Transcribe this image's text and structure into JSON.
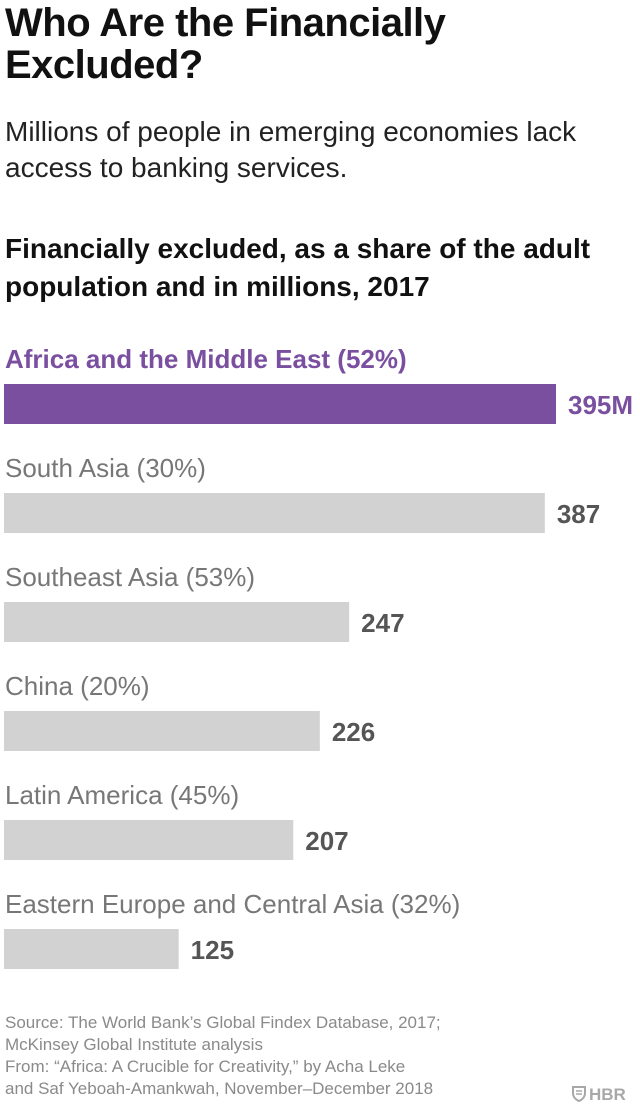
{
  "header": {
    "title": "Who Are the Financially Excluded?",
    "subtitle": "Millions of people in emerging economies lack access to banking services."
  },
  "chart_data": {
    "type": "bar",
    "orientation": "horizontal",
    "title": "Financially excluded, as a share of the adult population and in millions, 2017",
    "categories": [
      "Africa and the Middle East (52%)",
      "South Asia (30%)",
      "Southeast Asia (53%)",
      "China (20%)",
      "Latin America (45%)",
      "Eastern Europe and Central Asia (32%)"
    ],
    "values": [
      395,
      387,
      247,
      226,
      207,
      125
    ],
    "value_labels": [
      "395M",
      "387",
      "247",
      "226",
      "207",
      "125"
    ],
    "highlight_index": 0,
    "colors": {
      "highlight": "#7a4fa0",
      "bar": "#d2d2d2",
      "value_text": "#555555",
      "category_text": "#777777"
    },
    "xlim": [
      0,
      395
    ],
    "grid": false
  },
  "footer": {
    "source_line1": "Source: The World Bank’s Global Findex Database, 2017;",
    "source_line2": "McKinsey Global Institute analysis",
    "from_line1": "From: “Africa: A Crucible for Creativity,” by Acha Leke",
    "from_line2": "and Saf Yeboah-Amankwah, November–December 2018",
    "logo_text": "HBR"
  }
}
